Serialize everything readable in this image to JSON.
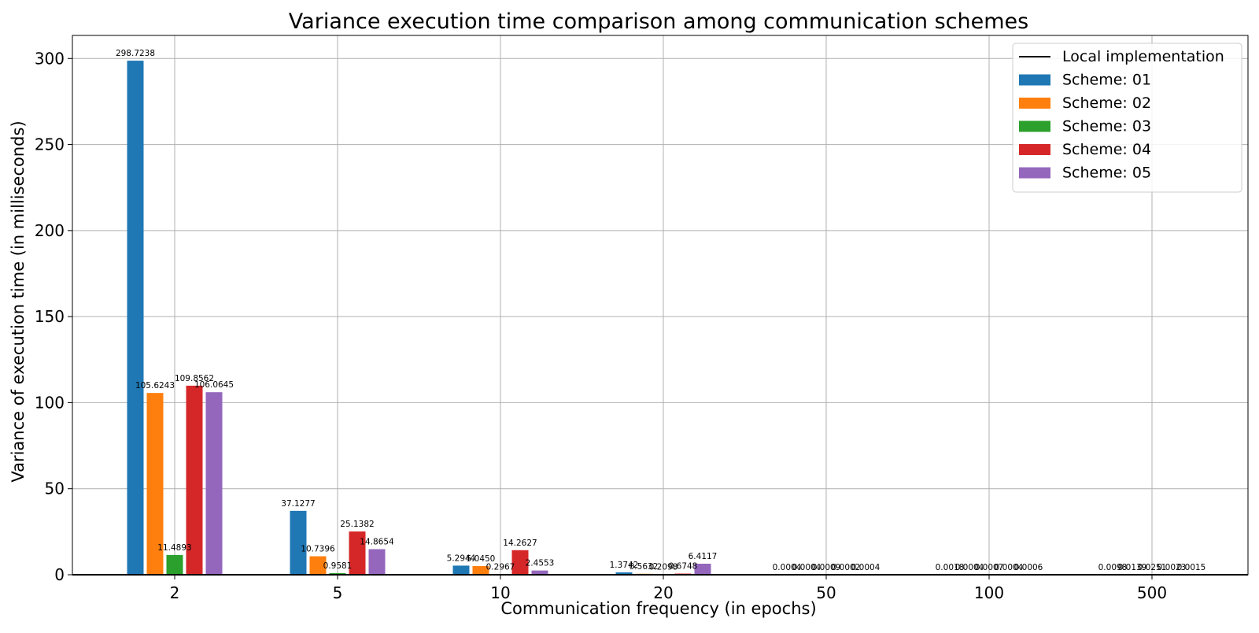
{
  "chart_data": {
    "type": "bar",
    "title": "Variance execution time comparison among communication schemes",
    "xlabel": "Communication frequency (in epochs)",
    "ylabel": "Variance of execution time (in milliseconds)",
    "categories": [
      "2",
      "5",
      "10",
      "20",
      "50",
      "100",
      "500"
    ],
    "ylim": [
      0,
      313.4
    ],
    "yticks": [
      0,
      50,
      100,
      150,
      200,
      250,
      300
    ],
    "grid": true,
    "legend_position": "top-right",
    "series": [
      {
        "name": "Scheme: 01",
        "color": "#1f77b4",
        "values": [
          298.7238,
          37.1277,
          5.2944,
          1.3742,
          0.0004,
          0.0018,
          0.0098
        ]
      },
      {
        "name": "Scheme: 02",
        "color": "#ff7f0e",
        "values": [
          105.6243,
          10.7396,
          5.045,
          0.5632,
          0.0004,
          0.0004,
          0.0139
        ]
      },
      {
        "name": "Scheme: 03",
        "color": "#2ca02c",
        "values": [
          11.4893,
          0.9581,
          0.2967,
          0.2098,
          0.0009,
          0.0007,
          0.0251
        ]
      },
      {
        "name": "Scheme: 04",
        "color": "#d62728",
        "values": [
          109.8562,
          25.1382,
          14.2627,
          0.6748,
          0.0002,
          0.0004,
          0.0023
        ]
      },
      {
        "name": "Scheme: 05",
        "color": "#9467bd",
        "values": [
          106.0645,
          14.8654,
          2.4553,
          6.4117,
          0.0004,
          0.0006,
          0.0015
        ]
      }
    ],
    "data_labels": [
      [
        "298.7238",
        "37.1277",
        "5.2944",
        "1.3742",
        "0.0004",
        "0.0018",
        "0.0098"
      ],
      [
        "105.6243",
        "10.7396",
        "5.0450",
        "0.5632",
        "0.0004",
        "0.0004",
        "0.0139"
      ],
      [
        "11.4893",
        "0.9581",
        "0.2967",
        "0.2098",
        "0.0009",
        "0.0007",
        "0.0251"
      ],
      [
        "109.8562",
        "25.1382",
        "14.2627",
        "0.6748",
        "0.0002",
        "0.0004",
        "0.0023"
      ],
      [
        "106.0645",
        "14.8654",
        "2.4553",
        "6.4117",
        "0.0004",
        "0.0006",
        "0.0015"
      ]
    ],
    "legend": {
      "line_entry": {
        "label": "Local implementation",
        "color": "#000000"
      }
    }
  }
}
